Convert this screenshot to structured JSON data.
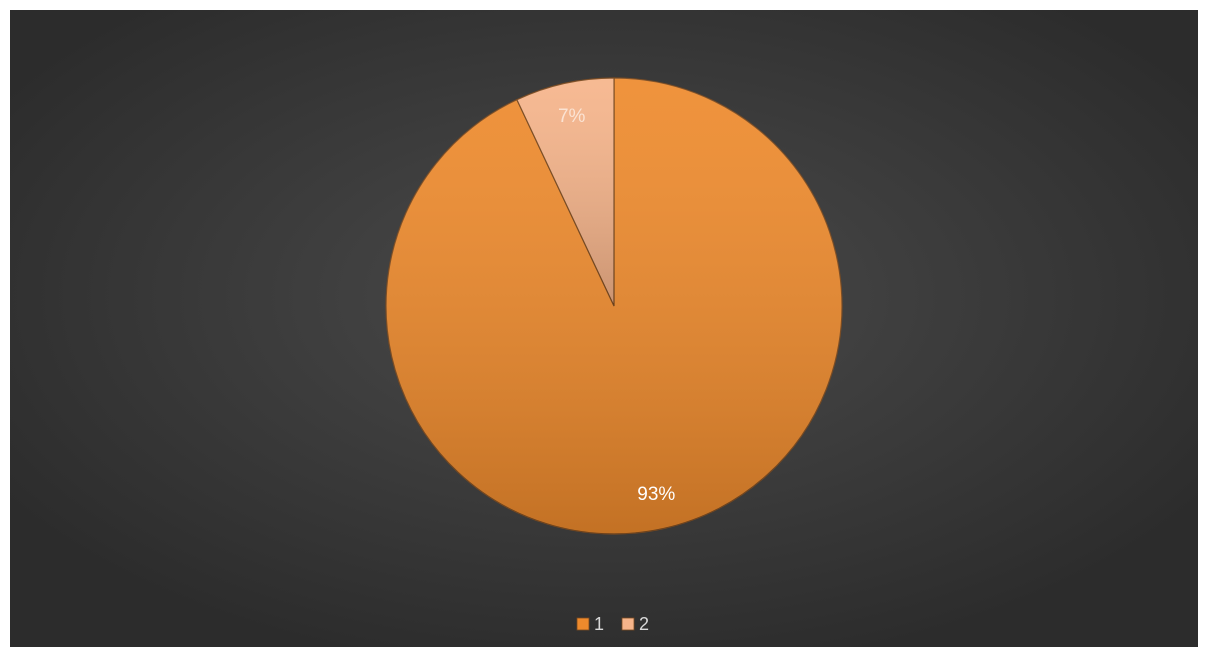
{
  "chart_data": {
    "type": "pie",
    "categories": [
      "1",
      "2"
    ],
    "values": [
      93,
      7
    ],
    "value_labels": [
      "93%",
      "7%"
    ],
    "colors": [
      "#ee8a2c",
      "#f6b48a"
    ],
    "legend": "bottom"
  }
}
